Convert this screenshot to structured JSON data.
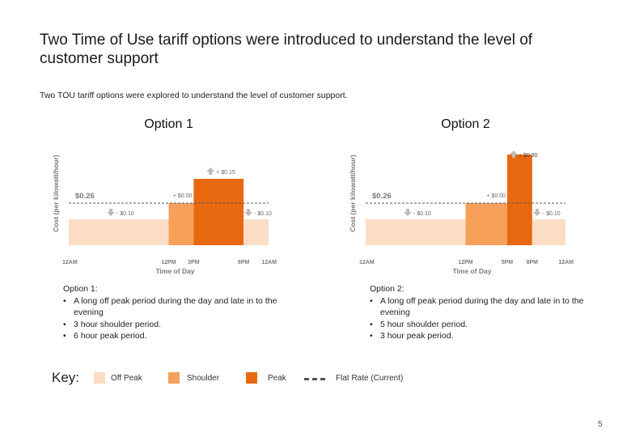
{
  "page": {
    "title": "Two Time of Use tariff options were introduced to understand the level of customer support",
    "subtitle": "Two TOU tariff options were explored to understand the level of customer support.",
    "page_number": "5"
  },
  "colors": {
    "off_peak": "#fbdcc4",
    "shoulder": "#f6a05a",
    "peak": "#e8680f",
    "flat_rate_line": "#555555",
    "arrow": "#bbbbbb",
    "axis_text": "#7a7a7a"
  },
  "option1": {
    "heading": "Option 1:",
    "bullets": [
      "A long off peak period during the day and late in to the evening",
      "3 hour shoulder period.",
      "6 hour peak period."
    ]
  },
  "option2": {
    "heading": "Option 2:",
    "bullets": [
      "A long off peak period during the day and late in to the evening",
      "5 hour shoulder period.",
      "3 hour peak period."
    ]
  },
  "key": {
    "title": "Key:",
    "off_peak": "Off Peak",
    "shoulder": "Shoulder",
    "peak": "Peak",
    "flat_rate": "Flat Rate (Current)"
  },
  "chart_data": [
    {
      "type": "bar",
      "title": "Option 1",
      "xlabel": "Time of Day",
      "ylabel": "Cost (per kilowatt/hour)",
      "flat_rate": 0.26,
      "flat_rate_label": "$0.26",
      "x_ticks": [
        {
          "hour": 0,
          "label": "12AM"
        },
        {
          "hour": 12,
          "label": "12PM"
        },
        {
          "hour": 15,
          "label": "3PM"
        },
        {
          "hour": 21,
          "label": "9PM"
        },
        {
          "hour": 24,
          "label": "12AM"
        }
      ],
      "segments": [
        {
          "period": "off_peak",
          "start": 0,
          "end": 12,
          "value": 0.16,
          "delta_label": "- $0.10",
          "direction": "down"
        },
        {
          "period": "shoulder",
          "start": 12,
          "end": 15,
          "value": 0.26,
          "delta_label": "+ $0.00",
          "direction": "none"
        },
        {
          "period": "peak",
          "start": 15,
          "end": 21,
          "value": 0.41,
          "delta_label": "+ $0.15",
          "direction": "up"
        },
        {
          "period": "off_peak",
          "start": 21,
          "end": 24,
          "value": 0.16,
          "delta_label": "- $0.10",
          "direction": "down"
        }
      ]
    },
    {
      "type": "bar",
      "title": "Option 2",
      "xlabel": "Time of Day",
      "ylabel": "Cost (per kilowatt/hour)",
      "flat_rate": 0.26,
      "flat_rate_label": "$0.26",
      "x_ticks": [
        {
          "hour": 0,
          "label": "12AM"
        },
        {
          "hour": 12,
          "label": "12PM"
        },
        {
          "hour": 17,
          "label": "5PM"
        },
        {
          "hour": 20,
          "label": "8PM"
        },
        {
          "hour": 24,
          "label": "12AM"
        }
      ],
      "segments": [
        {
          "period": "off_peak",
          "start": 0,
          "end": 12,
          "value": 0.16,
          "delta_label": "- $0.10",
          "direction": "down"
        },
        {
          "period": "shoulder",
          "start": 12,
          "end": 17,
          "value": 0.26,
          "delta_label": "+ $0.00",
          "direction": "none"
        },
        {
          "period": "peak",
          "start": 17,
          "end": 20,
          "value": 0.56,
          "delta_label": "+ $0.30",
          "direction": "up"
        },
        {
          "period": "off_peak",
          "start": 20,
          "end": 24,
          "value": 0.16,
          "delta_label": "- $0.10",
          "direction": "down"
        }
      ]
    }
  ]
}
